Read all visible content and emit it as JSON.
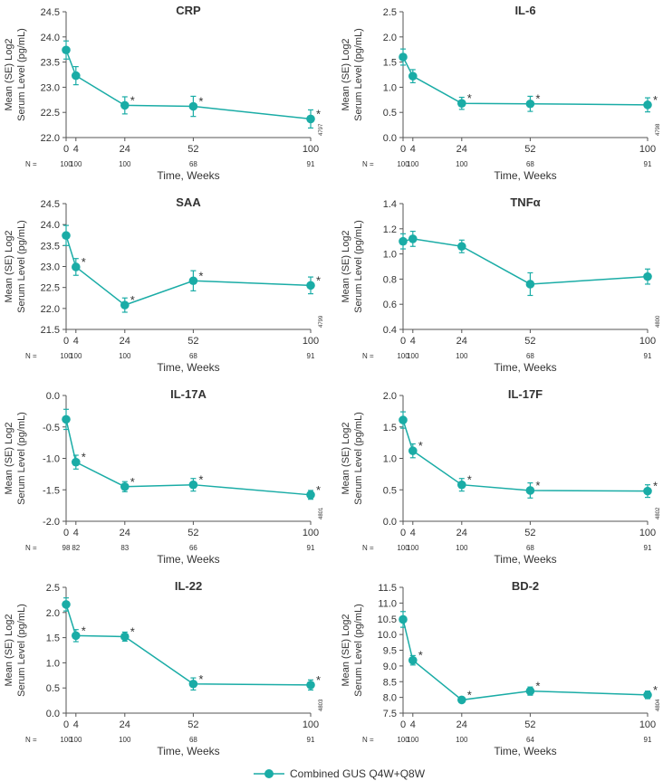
{
  "legend": {
    "label": "Combined GUS Q4W+Q8W",
    "position": "bottom-center"
  },
  "colors": {
    "series": "#1aaca6",
    "axis": "#555555",
    "text": "#333333"
  },
  "chart_data": [
    {
      "type": "line",
      "title": "CRP",
      "ylabel": [
        "Mean (SE) Log2",
        "Serum Level (pg/mL)"
      ],
      "xlabel": "Time, Weeks",
      "x": [
        0,
        4,
        24,
        52,
        100
      ],
      "xticks": [
        "0",
        "4",
        "24",
        "52",
        "100"
      ],
      "ylim": [
        22.0,
        24.5
      ],
      "yticks": [
        "22.0",
        "22.5",
        "23.0",
        "23.5",
        "24.0",
        "24.5"
      ],
      "series": [
        {
          "name": "Combined GUS Q4W+Q8W",
          "values": [
            23.74,
            23.23,
            22.64,
            22.62,
            22.37
          ],
          "errors": [
            0.18,
            0.18,
            0.17,
            0.2,
            0.18
          ]
        }
      ],
      "significant": [
        false,
        false,
        true,
        true,
        true
      ],
      "n_label": "N =",
      "n": [
        "100",
        "100",
        "100",
        "68",
        "91"
      ],
      "code": "4797"
    },
    {
      "type": "line",
      "title": "IL-6",
      "ylabel": [
        "Mean (SE) Log2",
        "Serum Level (pg/mL)"
      ],
      "xlabel": "Time, Weeks",
      "x": [
        0,
        4,
        24,
        52,
        100
      ],
      "xticks": [
        "0",
        "4",
        "24",
        "52",
        "100"
      ],
      "ylim": [
        0.0,
        2.5
      ],
      "yticks": [
        "0.0",
        "0.5",
        "1.0",
        "1.5",
        "2.0",
        "2.5"
      ],
      "series": [
        {
          "name": "Combined GUS Q4W+Q8W",
          "values": [
            1.6,
            1.22,
            0.68,
            0.67,
            0.65
          ],
          "errors": [
            0.16,
            0.13,
            0.12,
            0.15,
            0.14
          ]
        }
      ],
      "significant": [
        false,
        false,
        true,
        true,
        true
      ],
      "n_label": "N =",
      "n": [
        "100",
        "100",
        "100",
        "68",
        "91"
      ],
      "code": "4798"
    },
    {
      "type": "line",
      "title": "SAA",
      "ylabel": [
        "Mean (SE) Log2",
        "Serum Level (pg/mL)"
      ],
      "xlabel": "Time, Weeks",
      "x": [
        0,
        4,
        24,
        52,
        100
      ],
      "xticks": [
        "0",
        "4",
        "24",
        "52",
        "100"
      ],
      "ylim": [
        21.5,
        24.5
      ],
      "yticks": [
        "21.5",
        "22.0",
        "22.5",
        "23.0",
        "23.5",
        "24.0",
        "24.5"
      ],
      "series": [
        {
          "name": "Combined GUS Q4W+Q8W",
          "values": [
            23.74,
            22.99,
            22.08,
            22.66,
            22.55
          ],
          "errors": [
            0.24,
            0.2,
            0.17,
            0.24,
            0.2
          ]
        }
      ],
      "significant": [
        false,
        true,
        true,
        true,
        true
      ],
      "n_label": "N =",
      "n": [
        "100",
        "100",
        "100",
        "68",
        "91"
      ],
      "code": "4799"
    },
    {
      "type": "line",
      "title": "TNFα",
      "ylabel": [
        "Mean (SE) Log2",
        "Serum Level (pg/mL)"
      ],
      "xlabel": "Time, Weeks",
      "x": [
        0,
        4,
        24,
        52,
        100
      ],
      "xticks": [
        "0",
        "4",
        "24",
        "52",
        "100"
      ],
      "ylim": [
        0.4,
        1.4
      ],
      "yticks": [
        "0.4",
        "0.6",
        "0.8",
        "1.0",
        "1.2",
        "1.4"
      ],
      "series": [
        {
          "name": "Combined GUS Q4W+Q8W",
          "values": [
            1.1,
            1.12,
            1.06,
            0.76,
            0.82
          ],
          "errors": [
            0.06,
            0.06,
            0.05,
            0.09,
            0.06
          ]
        }
      ],
      "significant": [
        false,
        false,
        false,
        false,
        false
      ],
      "n_label": "N =",
      "n": [
        "100",
        "100",
        "100",
        "68",
        "91"
      ],
      "code": "4800"
    },
    {
      "type": "line",
      "title": "IL-17A",
      "ylabel": [
        "Mean (SE) Log2",
        "Serum Level (pg/mL)"
      ],
      "xlabel": "Time, Weeks",
      "x": [
        0,
        4,
        24,
        52,
        100
      ],
      "xticks": [
        "0",
        "4",
        "24",
        "52",
        "100"
      ],
      "ylim": [
        -2.0,
        0.0
      ],
      "yticks": [
        "-2.0",
        "-1.5",
        "-1.0",
        "-0.5",
        "0.0"
      ],
      "series": [
        {
          "name": "Combined GUS Q4W+Q8W",
          "values": [
            -0.38,
            -1.06,
            -1.45,
            -1.42,
            -1.58
          ],
          "errors": [
            0.16,
            0.11,
            0.08,
            0.1,
            0.07
          ]
        }
      ],
      "significant": [
        false,
        true,
        true,
        true,
        true
      ],
      "n_label": "N =",
      "n": [
        "98",
        "82",
        "83",
        "66",
        "91"
      ],
      "code": "4801"
    },
    {
      "type": "line",
      "title": "IL-17F",
      "ylabel": [
        "Mean (SE) Log2",
        "Serum Level (pg/mL)"
      ],
      "xlabel": "Time, Weeks",
      "x": [
        0,
        4,
        24,
        52,
        100
      ],
      "xticks": [
        "0",
        "4",
        "24",
        "52",
        "100"
      ],
      "ylim": [
        0.0,
        2.0
      ],
      "yticks": [
        "0.0",
        "0.5",
        "1.0",
        "1.5",
        "2.0"
      ],
      "series": [
        {
          "name": "Combined GUS Q4W+Q8W",
          "values": [
            1.61,
            1.12,
            0.58,
            0.49,
            0.48
          ],
          "errors": [
            0.13,
            0.11,
            0.1,
            0.12,
            0.1
          ]
        }
      ],
      "significant": [
        false,
        true,
        true,
        true,
        true
      ],
      "n_label": "N =",
      "n": [
        "100",
        "100",
        "100",
        "68",
        "91"
      ],
      "code": "4802"
    },
    {
      "type": "line",
      "title": "IL-22",
      "ylabel": [
        "Mean (SE) Log2",
        "Serum Level (pg/mL)"
      ],
      "xlabel": "Time, Weeks",
      "x": [
        0,
        4,
        24,
        52,
        100
      ],
      "xticks": [
        "0",
        "4",
        "24",
        "52",
        "100"
      ],
      "ylim": [
        0.0,
        2.5
      ],
      "yticks": [
        "0.0",
        "0.5",
        "1.0",
        "1.5",
        "2.0",
        "2.5"
      ],
      "series": [
        {
          "name": "Combined GUS Q4W+Q8W",
          "values": [
            2.16,
            1.54,
            1.52,
            0.58,
            0.56
          ],
          "errors": [
            0.13,
            0.12,
            0.09,
            0.12,
            0.1
          ]
        }
      ],
      "significant": [
        false,
        true,
        true,
        true,
        true
      ],
      "n_label": "N =",
      "n": [
        "100",
        "100",
        "100",
        "68",
        "91"
      ],
      "code": "4803"
    },
    {
      "type": "line",
      "title": "BD-2",
      "ylabel": [
        "Mean (SE) Log2",
        "Serum Level (pg/mL)"
      ],
      "xlabel": "Time, Weeks",
      "x": [
        0,
        4,
        24,
        52,
        100
      ],
      "xticks": [
        "0",
        "4",
        "24",
        "52",
        "100"
      ],
      "ylim": [
        7.5,
        11.5
      ],
      "yticks": [
        "7.5",
        "8.0",
        "8.5",
        "9.0",
        "9.5",
        "10.0",
        "10.5",
        "11.0",
        "11.5"
      ],
      "series": [
        {
          "name": "Combined GUS Q4W+Q8W",
          "values": [
            10.48,
            9.18,
            7.92,
            8.2,
            8.08
          ],
          "errors": [
            0.25,
            0.15,
            0.04,
            0.13,
            0.12
          ]
        }
      ],
      "significant": [
        false,
        true,
        true,
        true,
        true
      ],
      "n_label": "N =",
      "n": [
        "100",
        "100",
        "100",
        "64",
        "91"
      ],
      "code": "4804"
    }
  ]
}
